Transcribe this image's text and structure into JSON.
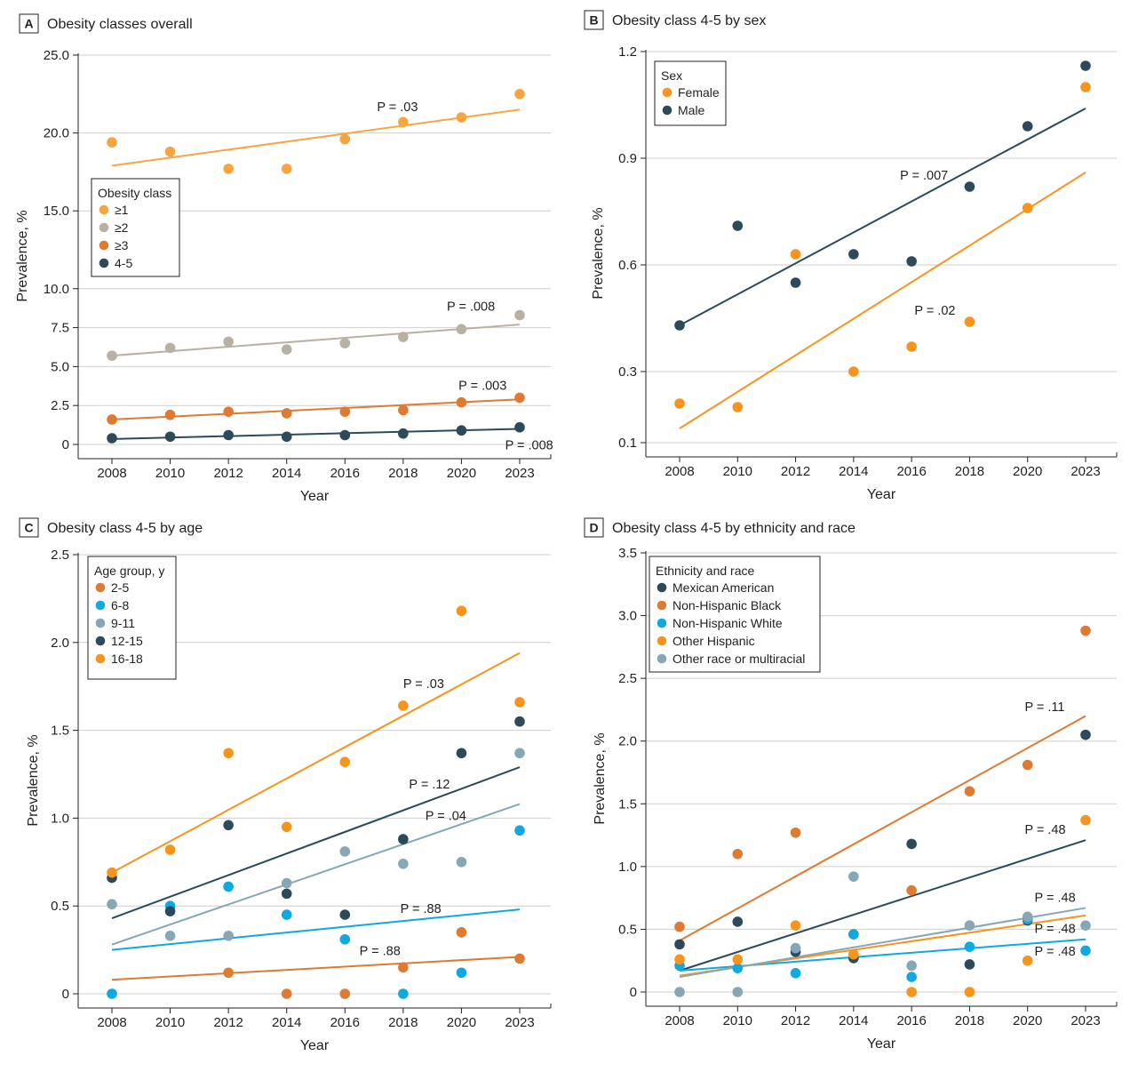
{
  "chart_data": [
    {
      "panel": "A",
      "type": "scatter",
      "title": "Obesity classes overall",
      "xlabel": "Year",
      "ylabel": "Prevalence, %",
      "x_ticks": [
        "2008",
        "2010",
        "2012",
        "2014",
        "2016",
        "2018",
        "2020",
        "2023"
      ],
      "y_ticks": [
        "0",
        "2.5",
        "5.0",
        "7.5",
        "10.0",
        "15.0",
        "20.0",
        "25.0"
      ],
      "y_tick_values": [
        0,
        2.5,
        5,
        7.5,
        10,
        15,
        20,
        25
      ],
      "ylim": [
        0,
        25
      ],
      "legend_title": "Obesity class",
      "legend_position": "middle-left",
      "series": [
        {
          "name": "≥1",
          "color": "#f7a541",
          "values": [
            19.4,
            18.8,
            17.7,
            17.7,
            19.6,
            20.7,
            21.0,
            22.5
          ],
          "trend": [
            17.9,
            21.5
          ]
        },
        {
          "name": "≥2",
          "color": "#b9b0a4",
          "values": [
            5.7,
            6.2,
            6.6,
            6.1,
            6.5,
            6.9,
            7.4,
            8.3
          ],
          "trend": [
            5.7,
            7.7
          ]
        },
        {
          "name": "≥3",
          "color": "#de7a32",
          "values": [
            1.6,
            1.9,
            2.1,
            2.0,
            2.1,
            2.2,
            2.7,
            3.0
          ],
          "trend": [
            1.6,
            2.9
          ]
        },
        {
          "name": "4-5",
          "color": "#2d4a5b",
          "values": [
            0.4,
            0.5,
            0.6,
            0.5,
            0.6,
            0.7,
            0.9,
            1.1
          ],
          "trend": [
            0.35,
            1.0
          ]
        }
      ],
      "annotations": [
        {
          "text": "P = .03",
          "x": 4.55,
          "y": 21.4
        },
        {
          "text": "P = .008",
          "x": 5.75,
          "y": 8.6
        },
        {
          "text": "P = .003",
          "x": 5.95,
          "y": 3.5
        },
        {
          "text": "P = .008",
          "x": 6.75,
          "y": -0.3
        }
      ]
    },
    {
      "panel": "B",
      "type": "scatter",
      "title": "Obesity class 4-5 by sex",
      "xlabel": "Year",
      "ylabel": "Prevalence, %",
      "x_ticks": [
        "2008",
        "2010",
        "2012",
        "2014",
        "2016",
        "2018",
        "2020",
        "2023"
      ],
      "y_ticks": [
        "0.1",
        "0.3",
        "0.6",
        "0.9",
        "1.2"
      ],
      "y_tick_values": [
        0.1,
        0.3,
        0.6,
        0.9,
        1.2
      ],
      "ylim": [
        0.1,
        1.2
      ],
      "legend_title": "Sex",
      "legend_position": "top-left",
      "series": [
        {
          "name": "Female",
          "color": "#f7941d",
          "values": [
            0.21,
            0.2,
            0.63,
            0.3,
            0.37,
            0.44,
            0.76,
            1.1
          ],
          "trend": [
            0.14,
            0.86
          ]
        },
        {
          "name": "Male",
          "color": "#2d4a5b",
          "values": [
            0.43,
            0.71,
            0.55,
            0.63,
            0.61,
            0.82,
            0.99,
            1.16
          ],
          "trend": [
            0.43,
            1.04
          ]
        }
      ],
      "annotations": [
        {
          "text": "P = .007",
          "x": 3.8,
          "y": 0.84
        },
        {
          "text": "P = .02",
          "x": 4.05,
          "y": 0.46
        }
      ]
    },
    {
      "panel": "C",
      "type": "scatter",
      "title": "Obesity class 4-5 by age",
      "xlabel": "Year",
      "ylabel": "Prevalence, %",
      "x_ticks": [
        "2008",
        "2010",
        "2012",
        "2014",
        "2016",
        "2018",
        "2020",
        "2023"
      ],
      "y_ticks": [
        "0",
        "0.5",
        "1.0",
        "1.5",
        "2.0",
        "2.5"
      ],
      "y_tick_values": [
        0,
        0.5,
        1.0,
        1.5,
        2.0,
        2.5
      ],
      "ylim": [
        0,
        2.5
      ],
      "legend_title": "Age group, y",
      "legend_position": "top-left",
      "series": [
        {
          "name": "2-5",
          "color": "#de7a32",
          "values": [
            null,
            null,
            0.12,
            0.0,
            0.0,
            0.15,
            0.35,
            0.2
          ],
          "trend": [
            0.08,
            0.21
          ]
        },
        {
          "name": "6-8",
          "color": "#10a8e0",
          "values": [
            0.0,
            0.5,
            0.61,
            0.45,
            0.31,
            0.0,
            0.12,
            0.93
          ],
          "trend": [
            0.25,
            0.48
          ]
        },
        {
          "name": "9-11",
          "color": "#86a7b5",
          "values": [
            0.51,
            0.33,
            0.33,
            0.63,
            0.81,
            0.74,
            0.75,
            1.37
          ],
          "trend": [
            0.28,
            1.08
          ]
        },
        {
          "name": "12-15",
          "color": "#2d4a5b",
          "values": [
            0.66,
            0.47,
            0.96,
            0.57,
            0.45,
            0.88,
            1.37,
            1.55
          ],
          "trend": [
            0.43,
            1.29
          ]
        },
        {
          "name": "16-18",
          "color": "#f7941d",
          "values": [
            0.69,
            0.82,
            1.37,
            0.95,
            1.32,
            1.64,
            2.18,
            1.66
          ],
          "trend": [
            0.69,
            1.94
          ]
        }
      ],
      "annotations": [
        {
          "text": "P = .03",
          "x": 5.0,
          "y": 1.74
        },
        {
          "text": "P = .12",
          "x": 5.1,
          "y": 1.17
        },
        {
          "text": "P = .04",
          "x": 5.38,
          "y": 0.99
        },
        {
          "text": "P = .88",
          "x": 4.95,
          "y": 0.46
        },
        {
          "text": "P = .88",
          "x": 4.25,
          "y": 0.22
        }
      ]
    },
    {
      "panel": "D",
      "type": "scatter",
      "title": "Obesity class 4-5 by ethnicity and race",
      "xlabel": "Year",
      "ylabel": "Prevalence, %",
      "x_ticks": [
        "2008",
        "2010",
        "2012",
        "2014",
        "2016",
        "2018",
        "2020",
        "2023"
      ],
      "y_ticks": [
        "0",
        "0.5",
        "1.0",
        "1.5",
        "2.0",
        "2.5",
        "3.0",
        "3.5"
      ],
      "y_tick_values": [
        0,
        0.5,
        1.0,
        1.5,
        2.0,
        2.5,
        3.0,
        3.5
      ],
      "ylim": [
        0,
        3.5
      ],
      "legend_title": "Ethnicity and race",
      "legend_position": "top-left",
      "series": [
        {
          "name": "Mexican American",
          "color": "#2d4a5b",
          "values": [
            0.38,
            0.56,
            0.32,
            0.27,
            1.18,
            0.22,
            0.57,
            2.05
          ],
          "trend": [
            0.17,
            1.21
          ]
        },
        {
          "name": "Non-Hispanic Black",
          "color": "#de7a32",
          "values": [
            0.52,
            1.1,
            1.27,
            0.46,
            0.81,
            1.6,
            1.81,
            2.88
          ],
          "trend": [
            0.41,
            2.2
          ]
        },
        {
          "name": "Non-Hispanic White",
          "color": "#10a8e0",
          "values": [
            0.21,
            0.19,
            0.15,
            0.46,
            0.12,
            0.36,
            0.58,
            0.33
          ],
          "trend": [
            0.17,
            0.42
          ]
        },
        {
          "name": "Other Hispanic",
          "color": "#f7941d",
          "values": [
            0.26,
            0.26,
            0.53,
            0.3,
            0.0,
            0.0,
            0.25,
            1.37
          ],
          "trend": [
            0.13,
            0.61
          ]
        },
        {
          "name": "Other race or multiracial",
          "color": "#86a7b5",
          "values": [
            0.0,
            0.0,
            0.35,
            0.92,
            0.21,
            0.53,
            0.6,
            0.53
          ],
          "trend": [
            0.12,
            0.67
          ]
        }
      ],
      "annotations": [
        {
          "text": "P = .11",
          "x": 5.95,
          "y": 2.24
        },
        {
          "text": "P = .48",
          "x": 5.95,
          "y": 1.26
        },
        {
          "text": "P = .48",
          "x": 6.12,
          "y": 0.72
        },
        {
          "text": "P = .48",
          "x": 6.12,
          "y": 0.47
        },
        {
          "text": "P = .48",
          "x": 6.12,
          "y": 0.29
        }
      ]
    }
  ]
}
